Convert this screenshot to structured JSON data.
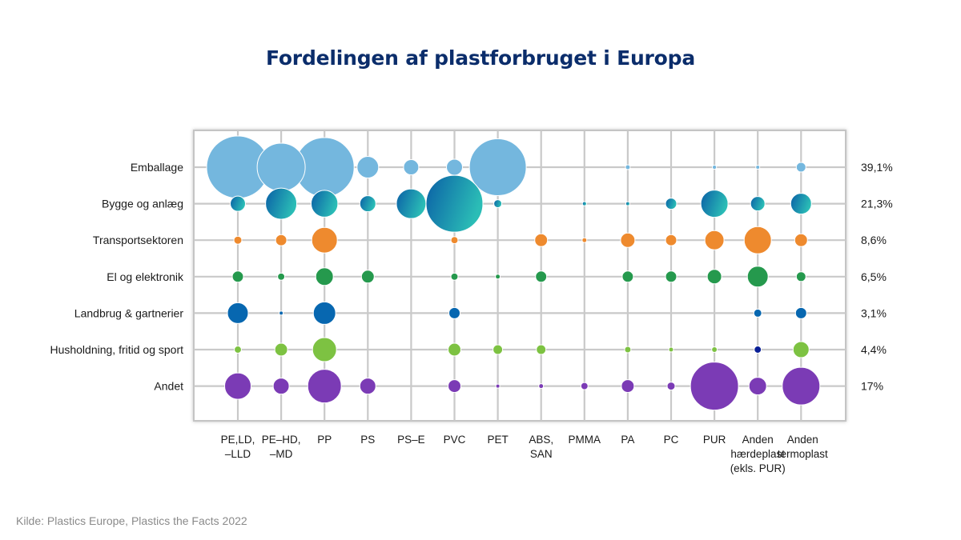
{
  "title": "Fordelingen af plastforbruget i Europa",
  "source": "Kilde: Plastics Europe, Plastics the Facts 2022",
  "chart_data": {
    "type": "bubble",
    "title": "Fordelingen af plastforbruget i Europa",
    "rows": [
      {
        "name": "Emballage",
        "share": "39,1%",
        "color": "#74b7de"
      },
      {
        "name": "Bygge og anlæg",
        "share": "21,3%",
        "color": "#1a8fb8",
        "gradient": [
          "#0a5fa6",
          "#2bbdb6"
        ]
      },
      {
        "name": "Transportsektoren",
        "share": "8,6%",
        "color": "#ee8a2e"
      },
      {
        "name": "El og elektronik",
        "share": "6,5%",
        "color": "#25994d"
      },
      {
        "name": "Landbrug & gartnerier",
        "share": "3,1%",
        "color": "#0767b0"
      },
      {
        "name": "Husholdning, fritid og sport",
        "share": "4,4%",
        "color": "#7dc242"
      },
      {
        "name": "Andet",
        "share": "17%",
        "color": "#7b3bb5"
      }
    ],
    "columns": [
      {
        "lines": [
          "PE,LD,",
          "–LLD"
        ]
      },
      {
        "lines": [
          "PE–HD,",
          "–MD"
        ]
      },
      {
        "lines": [
          "PP"
        ]
      },
      {
        "lines": [
          "PS"
        ]
      },
      {
        "lines": [
          "PS–E"
        ]
      },
      {
        "lines": [
          "PVC"
        ]
      },
      {
        "lines": [
          "PET"
        ]
      },
      {
        "lines": [
          "ABS,",
          "SAN"
        ]
      },
      {
        "lines": [
          "PMMA"
        ]
      },
      {
        "lines": [
          "PA"
        ]
      },
      {
        "lines": [
          "PC"
        ]
      },
      {
        "lines": [
          "PUR"
        ]
      },
      {
        "lines": [
          "Anden",
          "hærdeplast",
          "(ekls. PUR)"
        ]
      },
      {
        "lines": [
          "Anden",
          "termoplast"
        ]
      }
    ],
    "values": [
      [
        1522,
        900,
        1369,
        182,
        90,
        100,
        1260,
        0,
        0,
        9,
        0,
        7,
        5,
        36
      ],
      [
        90,
        380,
        280,
        100,
        342,
        1260,
        25,
        0,
        7,
        5,
        49,
        289,
        81,
        169
      ],
      [
        25,
        49,
        256,
        0,
        0,
        20,
        0,
        64,
        9,
        81,
        49,
        144,
        289,
        64
      ],
      [
        49,
        20,
        121,
        64,
        0,
        20,
        9,
        49,
        0,
        49,
        49,
        81,
        169,
        36
      ],
      [
        169,
        5,
        196,
        0,
        0,
        49,
        0,
        0,
        0,
        0,
        0,
        0,
        25,
        49
      ],
      [
        20,
        64,
        225,
        0,
        0,
        64,
        36,
        36,
        0,
        16,
        9,
        12,
        20,
        100
      ],
      [
        272,
        100,
        441,
        100,
        0,
        64,
        5,
        9,
        20,
        64,
        25,
        900,
        121,
        552
      ]
    ],
    "special_colors": [
      {
        "row": 5,
        "col": 12,
        "color": "#0a1f96"
      }
    ],
    "grid": true
  }
}
